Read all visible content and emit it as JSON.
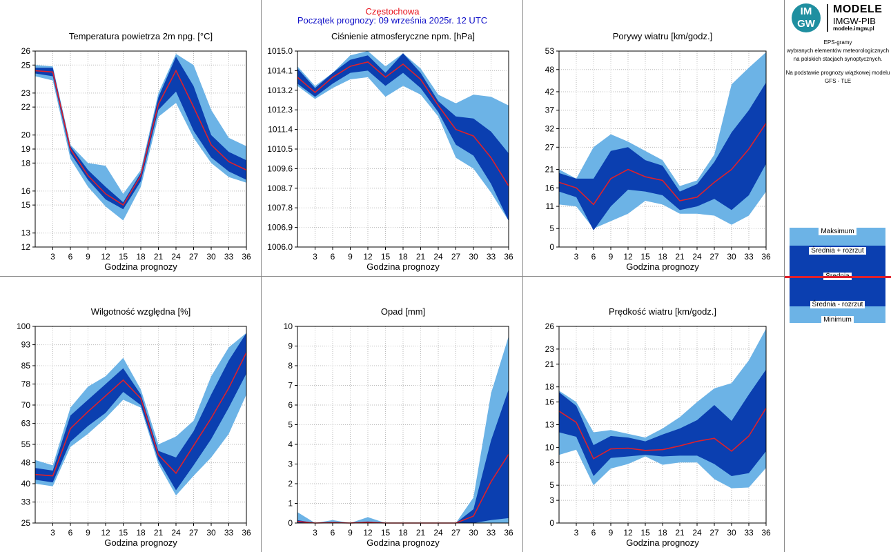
{
  "header": {
    "station": "Częstochowa",
    "forecast_start": "Początek prognozy: 09 września 2025r. 12 UTC"
  },
  "logo": {
    "badge_top": "IM",
    "badge_bottom": "GW",
    "line1": "MODELE",
    "line2": "IMGW-PIB",
    "line3": "modele.imgw.pl"
  },
  "description": {
    "lines": [
      "EPS-gramy",
      "wybranych elementów meteorologicznych",
      "na polskich stacjach  synoptycznych."
    ],
    "model_lines": [
      "Na podstawie prognozy wiązkowej modelu",
      "GFS - TLE"
    ]
  },
  "legend": {
    "max": "Maksimum",
    "mean_plus": "Średnia + rozrzut",
    "mean": "Średnia",
    "mean_minus": "Średnia - rozrzut",
    "min": "Minimum"
  },
  "colors": {
    "minmax_band": "#6cb3e6",
    "spread_band": "#0b3fb0",
    "mean_line": "#e0202a"
  },
  "chart_data": [
    {
      "type": "area",
      "title": "Temperatura powietrza 2m npg. [°C]",
      "xlabel": "Godzina prognozy",
      "x": [
        0,
        3,
        6,
        9,
        12,
        15,
        18,
        21,
        24,
        27,
        30,
        33,
        36
      ],
      "xticks": [
        3,
        6,
        9,
        12,
        15,
        18,
        21,
        24,
        27,
        30,
        33,
        36
      ],
      "ylim": [
        12,
        26
      ],
      "yticks": [
        "12",
        "13",
        "15",
        "16",
        "18",
        "19",
        "20",
        "22",
        "23",
        "25",
        "26"
      ],
      "series": [
        {
          "name": "Maksimum",
          "values": [
            25.0,
            24.9,
            19.3,
            18.0,
            17.8,
            15.8,
            17.5,
            23.0,
            25.8,
            25.0,
            21.8,
            19.8,
            19.2
          ]
        },
        {
          "name": "Średnia + rozrzut",
          "values": [
            24.8,
            24.8,
            19.2,
            17.5,
            16.3,
            15.2,
            17.3,
            22.7,
            25.6,
            23.5,
            20.0,
            18.8,
            18.2
          ]
        },
        {
          "name": "Średnia",
          "values": [
            24.6,
            24.5,
            19.0,
            17.1,
            15.8,
            15.0,
            17.1,
            22.2,
            24.6,
            22.0,
            19.3,
            18.1,
            17.5
          ]
        },
        {
          "name": "Średnia - rozrzut",
          "values": [
            24.4,
            24.2,
            18.7,
            16.8,
            15.4,
            14.7,
            16.7,
            21.8,
            23.1,
            20.3,
            18.4,
            17.4,
            16.8
          ]
        },
        {
          "name": "Minimum",
          "values": [
            24.2,
            23.9,
            18.3,
            16.3,
            14.9,
            13.9,
            16.3,
            21.3,
            22.3,
            19.8,
            18.0,
            17.0,
            16.6
          ]
        }
      ]
    },
    {
      "type": "area",
      "title": "Ciśnienie atmosferyczne npm. [hPa]",
      "xlabel": "Godzina prognozy",
      "x": [
        0,
        3,
        6,
        9,
        12,
        15,
        18,
        21,
        24,
        27,
        30,
        33,
        36
      ],
      "xticks": [
        3,
        6,
        9,
        12,
        15,
        18,
        21,
        24,
        27,
        30,
        33,
        36
      ],
      "ylim": [
        1006.0,
        1015.0
      ],
      "yticks": [
        "1006.0",
        "1006.9",
        "1007.8",
        "1008.7",
        "1009.6",
        "1010.5",
        "1011.4",
        "1012.3",
        "1013.2",
        "1014.1",
        "1015.0"
      ],
      "series": [
        {
          "name": "Maksimum",
          "values": [
            1014.3,
            1013.4,
            1014.0,
            1014.8,
            1015.0,
            1014.3,
            1014.9,
            1014.2,
            1013.0,
            1012.6,
            1013.0,
            1012.9,
            1012.5
          ]
        },
        {
          "name": "Średnia + rozrzut",
          "values": [
            1014.2,
            1013.3,
            1014.0,
            1014.6,
            1014.8,
            1014.0,
            1014.9,
            1014.0,
            1012.7,
            1012.0,
            1011.9,
            1011.3,
            1010.3
          ]
        },
        {
          "name": "Średnia",
          "values": [
            1013.8,
            1013.1,
            1013.8,
            1014.3,
            1014.5,
            1013.8,
            1014.4,
            1013.7,
            1012.5,
            1011.4,
            1011.1,
            1010.1,
            1008.8
          ]
        },
        {
          "name": "Średnia - rozrzut",
          "values": [
            1013.5,
            1012.9,
            1013.5,
            1014.0,
            1014.1,
            1013.4,
            1014.0,
            1013.3,
            1012.2,
            1010.7,
            1010.2,
            1008.9,
            1007.2
          ]
        },
        {
          "name": "Minimum",
          "values": [
            1013.4,
            1012.8,
            1013.3,
            1013.7,
            1013.8,
            1012.9,
            1013.4,
            1013.0,
            1012.0,
            1010.1,
            1009.6,
            1008.5,
            1007.2
          ]
        }
      ]
    },
    {
      "type": "area",
      "title": "Porywy wiatru [km/godz.]",
      "xlabel": "Godzina prognozy",
      "x": [
        0,
        3,
        6,
        9,
        12,
        15,
        18,
        21,
        24,
        27,
        30,
        33,
        36
      ],
      "xticks": [
        3,
        6,
        9,
        12,
        15,
        18,
        21,
        24,
        27,
        30,
        33,
        36
      ],
      "ylim": [
        0,
        53
      ],
      "yticks": [
        "0",
        "5",
        "11",
        "16",
        "21",
        "27",
        "32",
        "37",
        "42",
        "48",
        "53"
      ],
      "series": [
        {
          "name": "Maksimum",
          "values": [
            21.0,
            18.5,
            27.0,
            30.5,
            28.5,
            26.0,
            23.5,
            16.5,
            18.0,
            25.0,
            44.0,
            48.5,
            52.7
          ]
        },
        {
          "name": "Średnia + rozrzut",
          "values": [
            20.0,
            18.5,
            18.5,
            26.0,
            27.0,
            23.5,
            22.0,
            15.0,
            17.0,
            23.0,
            31.0,
            37.0,
            44.5
          ]
        },
        {
          "name": "Średnia",
          "values": [
            17.5,
            16.0,
            11.5,
            18.5,
            21.0,
            19.0,
            18.0,
            12.5,
            13.5,
            17.5,
            21.0,
            26.5,
            33.5
          ]
        },
        {
          "name": "Średnia - rozrzut",
          "values": [
            15.0,
            13.5,
            4.5,
            11.0,
            15.5,
            15.0,
            14.0,
            10.0,
            11.0,
            13.0,
            10.0,
            14.0,
            22.5
          ]
        },
        {
          "name": "Minimum",
          "values": [
            11.5,
            11.0,
            5.0,
            7.0,
            9.0,
            12.5,
            11.5,
            9.0,
            9.0,
            8.5,
            6.0,
            8.5,
            15.0
          ]
        }
      ]
    },
    {
      "type": "area",
      "title": "Wilgotność względna [%]",
      "xlabel": "Godzina prognozy",
      "x": [
        0,
        3,
        6,
        9,
        12,
        15,
        18,
        21,
        24,
        27,
        30,
        33,
        36
      ],
      "xticks": [
        3,
        6,
        9,
        12,
        15,
        18,
        21,
        24,
        27,
        30,
        33,
        36
      ],
      "ylim": [
        25,
        100
      ],
      "yticks": [
        "25",
        "33",
        "40",
        "48",
        "55",
        "63",
        "70",
        "78",
        "85",
        "93",
        "100"
      ],
      "series": [
        {
          "name": "Maksimum",
          "values": [
            49.0,
            47.0,
            69.0,
            77.0,
            81.0,
            88.0,
            76.0,
            55.0,
            58.0,
            64.0,
            81.0,
            92.0,
            97.5
          ]
        },
        {
          "name": "Średnia + rozrzut",
          "values": [
            46.0,
            45.0,
            66.0,
            72.0,
            78.0,
            84.0,
            74.0,
            52.5,
            50.0,
            60.0,
            74.0,
            87.0,
            97.5
          ]
        },
        {
          "name": "Średnia",
          "values": [
            43.5,
            43.0,
            61.0,
            67.5,
            73.5,
            79.5,
            72.5,
            51.0,
            44.0,
            54.5,
            65.0,
            76.5,
            90.0
          ]
        },
        {
          "name": "Średnia - rozrzut",
          "values": [
            41.5,
            40.5,
            56.0,
            62.0,
            67.0,
            75.0,
            70.0,
            49.0,
            37.5,
            47.0,
            57.0,
            69.0,
            82.0
          ]
        },
        {
          "name": "Minimum",
          "values": [
            40.0,
            39.0,
            54.0,
            59.0,
            65.0,
            72.0,
            69.0,
            47.5,
            35.5,
            43.0,
            50.0,
            59.0,
            74.0
          ]
        }
      ]
    },
    {
      "type": "area",
      "title": "Opad [mm]",
      "xlabel": "Godzina prognozy",
      "x": [
        0,
        3,
        6,
        9,
        12,
        15,
        18,
        21,
        24,
        27,
        30,
        33,
        36
      ],
      "xticks": [
        3,
        6,
        9,
        12,
        15,
        18,
        21,
        24,
        27,
        30,
        33,
        36
      ],
      "ylim": [
        0,
        10
      ],
      "yticks": [
        "0",
        "1",
        "2",
        "3",
        "4",
        "5",
        "6",
        "7",
        "8",
        "9",
        "10"
      ],
      "series": [
        {
          "name": "Maksimum",
          "values": [
            0.55,
            0.0,
            0.15,
            0.0,
            0.3,
            0.0,
            0.0,
            0.0,
            0.0,
            0.0,
            1.3,
            6.6,
            9.5
          ]
        },
        {
          "name": "Średnia + rozrzut",
          "values": [
            0.15,
            0.0,
            0.05,
            0.0,
            0.08,
            0.0,
            0.0,
            0.0,
            0.0,
            0.0,
            0.7,
            4.2,
            6.8
          ]
        },
        {
          "name": "Średnia",
          "values": [
            0.08,
            0.0,
            0.02,
            0.0,
            0.04,
            0.0,
            0.0,
            0.0,
            0.0,
            0.0,
            0.35,
            2.1,
            3.5
          ]
        },
        {
          "name": "Średnia - rozrzut",
          "values": [
            0.0,
            0.0,
            0.0,
            0.0,
            0.0,
            0.0,
            0.0,
            0.0,
            0.0,
            0.0,
            0.0,
            0.15,
            0.25
          ]
        },
        {
          "name": "Minimum",
          "values": [
            0.0,
            0.0,
            0.0,
            0.0,
            0.0,
            0.0,
            0.0,
            0.0,
            0.0,
            0.0,
            0.0,
            0.0,
            0.0
          ]
        }
      ]
    },
    {
      "type": "area",
      "title": "Prędkość wiatru [km/godz.]",
      "xlabel": "Godzina prognozy",
      "x": [
        0,
        3,
        6,
        9,
        12,
        15,
        18,
        21,
        24,
        27,
        30,
        33,
        36
      ],
      "xticks": [
        3,
        6,
        9,
        12,
        15,
        18,
        21,
        24,
        27,
        30,
        33,
        36
      ],
      "ylim": [
        0,
        26
      ],
      "yticks": [
        "0",
        "3",
        "5",
        "8",
        "10",
        "13",
        "16",
        "18",
        "21",
        "23",
        "26"
      ],
      "series": [
        {
          "name": "Maksimum",
          "values": [
            17.5,
            16.0,
            12.0,
            12.3,
            11.8,
            11.3,
            12.5,
            14.0,
            16.0,
            17.8,
            18.5,
            21.5,
            25.7
          ]
        },
        {
          "name": "Średnia + rozrzut",
          "values": [
            17.3,
            15.5,
            10.3,
            11.5,
            11.3,
            10.8,
            11.7,
            12.5,
            13.6,
            15.6,
            13.5,
            17.0,
            20.3
          ]
        },
        {
          "name": "Średnia",
          "values": [
            14.8,
            13.3,
            8.5,
            9.8,
            9.9,
            9.6,
            9.7,
            10.2,
            10.8,
            11.2,
            9.5,
            11.5,
            15.2
          ]
        },
        {
          "name": "Średnia - rozrzut",
          "values": [
            12.0,
            11.4,
            6.2,
            8.6,
            8.8,
            9.0,
            8.8,
            8.9,
            8.9,
            7.8,
            6.2,
            6.6,
            9.5
          ]
        },
        {
          "name": "Minimum",
          "values": [
            9.0,
            9.7,
            5.0,
            7.2,
            7.8,
            8.8,
            7.7,
            8.0,
            8.0,
            5.8,
            4.6,
            4.7,
            7.3
          ]
        }
      ]
    }
  ]
}
